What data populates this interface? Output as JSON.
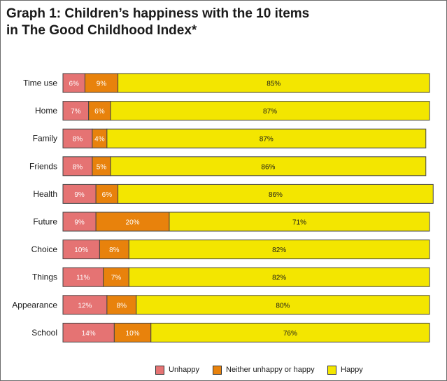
{
  "title_line1": "Graph 1: Children’s happiness with the 10 items",
  "title_line2": "in The Good Childhood Index*",
  "colors": {
    "unhappy": "#e57373",
    "neither": "#e8820c",
    "happy": "#f3e600",
    "outline": "#444444"
  },
  "chart_data": {
    "type": "bar",
    "orientation": "horizontal",
    "stacked": true,
    "categories": [
      "Time use",
      "Home",
      "Family",
      "Friends",
      "Health",
      "Future",
      "Choice",
      "Things",
      "Appearance",
      "School"
    ],
    "series": [
      {
        "name": "Unhappy",
        "values": [
          6,
          7,
          8,
          8,
          9,
          9,
          10,
          11,
          12,
          14
        ]
      },
      {
        "name": "Neither unhappy or happy",
        "values": [
          9,
          6,
          4,
          5,
          6,
          20,
          8,
          7,
          8,
          10
        ]
      },
      {
        "name": "Happy",
        "values": [
          85,
          87,
          87,
          86,
          86,
          71,
          82,
          82,
          80,
          76
        ]
      }
    ],
    "unit": "%",
    "xlim": [
      0,
      100
    ],
    "legend_position": "bottom"
  },
  "legend": [
    {
      "label": "Unhappy",
      "color_key": "unhappy"
    },
    {
      "label": "Neither unhappy or happy",
      "color_key": "neither"
    },
    {
      "label": "Happy",
      "color_key": "happy"
    }
  ]
}
